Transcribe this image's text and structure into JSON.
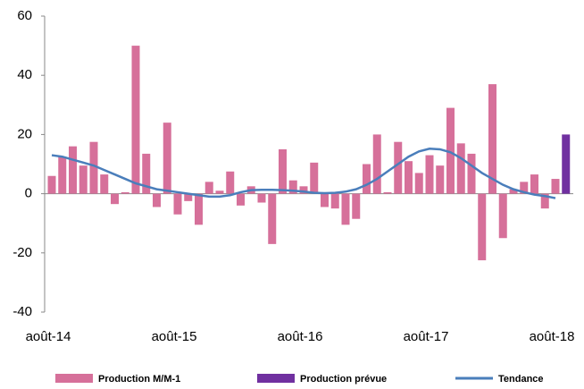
{
  "chart_data": {
    "type": "bar",
    "categories": [
      "août-14",
      null,
      null,
      null,
      null,
      null,
      null,
      null,
      null,
      null,
      null,
      null,
      "août-15",
      null,
      null,
      null,
      null,
      null,
      null,
      null,
      null,
      null,
      null,
      null,
      "août-16",
      null,
      null,
      null,
      null,
      null,
      null,
      null,
      null,
      null,
      null,
      null,
      "août-17",
      null,
      null,
      null,
      null,
      null,
      null,
      null,
      null,
      null,
      null,
      null,
      "août-18",
      null
    ],
    "series": [
      {
        "name": "Production M/M-1",
        "type": "bar",
        "color": "#d6709a",
        "values": [
          6,
          12.5,
          16,
          9.5,
          17.5,
          6.5,
          -3.5,
          0.5,
          50,
          13.5,
          -4.5,
          24,
          -7,
          -2.5,
          -10.5,
          4,
          1,
          7.5,
          -4,
          2.5,
          -3,
          -17,
          15,
          4.5,
          2.5,
          10.5,
          -4.5,
          -5,
          -10.5,
          -8.5,
          10,
          20,
          0.5,
          17.5,
          11,
          7,
          13,
          9.5,
          29,
          17,
          13.5,
          -22.5,
          37,
          -15,
          1.5,
          4,
          6.5,
          -5,
          5,
          null
        ]
      },
      {
        "name": "Production prévue",
        "type": "bar",
        "color": "#7030a0",
        "values": [
          null,
          null,
          null,
          null,
          null,
          null,
          null,
          null,
          null,
          null,
          null,
          null,
          null,
          null,
          null,
          null,
          null,
          null,
          null,
          null,
          null,
          null,
          null,
          null,
          null,
          null,
          null,
          null,
          null,
          null,
          null,
          null,
          null,
          null,
          null,
          null,
          null,
          null,
          null,
          null,
          null,
          null,
          null,
          null,
          null,
          null,
          null,
          null,
          null,
          20
        ]
      },
      {
        "name": "Tendance",
        "type": "line",
        "color": "#4a7ebb",
        "values": [
          13,
          12.5,
          11.5,
          10.5,
          9.5,
          8,
          6.5,
          5,
          3.5,
          2.5,
          1.5,
          1,
          0.5,
          0,
          -0.5,
          -1,
          -1,
          -0.5,
          0.5,
          1.2,
          1.3,
          1.3,
          1.2,
          1,
          0.7,
          0.3,
          0.2,
          0.3,
          0.7,
          1.5,
          3,
          5,
          7.5,
          10,
          12.5,
          14.3,
          15.2,
          15,
          14,
          12,
          9.5,
          7,
          5,
          3,
          1.5,
          0.5,
          -0.3,
          -0.8,
          -1.5,
          null
        ]
      }
    ],
    "ylim": [
      -40,
      60
    ],
    "yticks": [
      -40,
      -20,
      0,
      20,
      40,
      60
    ],
    "grid": false
  }
}
